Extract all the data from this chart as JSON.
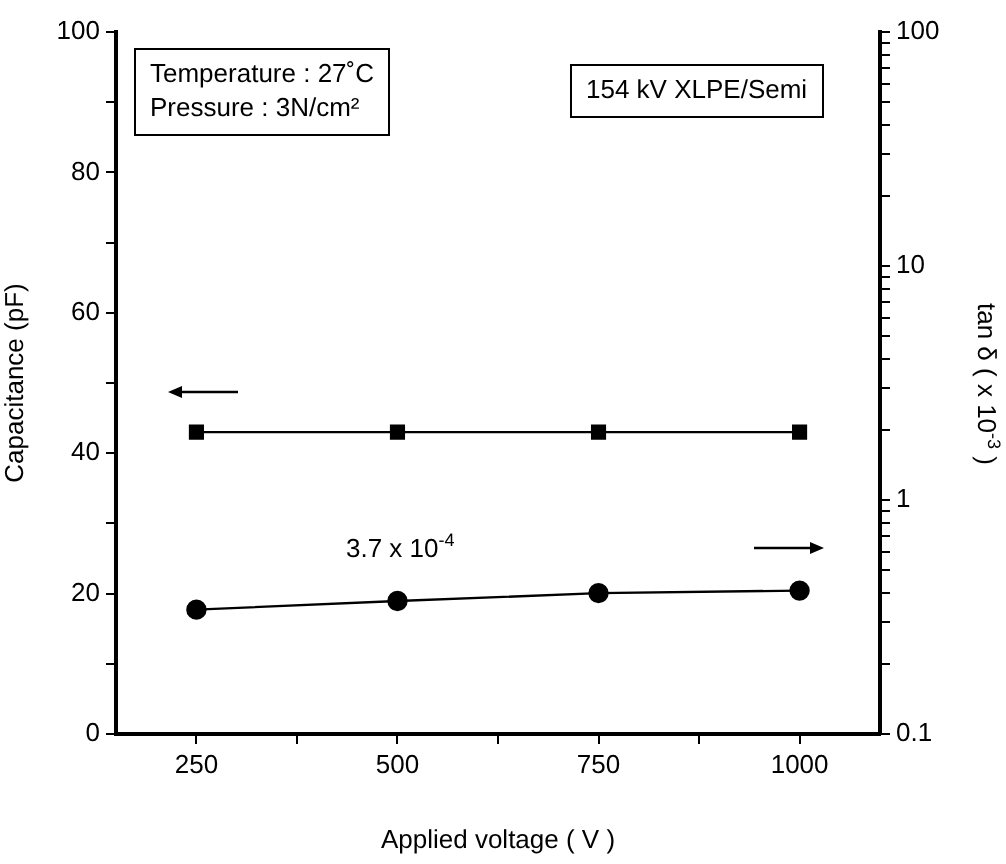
{
  "chart_data": {
    "type": "line",
    "xlabel": "Applied voltage ( V )",
    "ylabel": "Capacitance (pF)",
    "y2label": "tan δ ( x 10$^{-3}$ )",
    "x": [
      250,
      500,
      750,
      1000
    ],
    "series": [
      {
        "color": "#000000",
        "marker": "square",
        "values": [
          43,
          43,
          43,
          43
        ]
      },
      {
        "color": "#000000",
        "marker": "circle",
        "axis": "y2",
        "values": [
          0.34,
          0.37,
          0.4,
          0.41
        ]
      }
    ],
    "xlim": [
      150,
      1100
    ],
    "xticks": [
      250,
      {
        "value": 375,
        "label": null
      },
      500,
      {
        "value": 625,
        "label": null
      },
      750,
      {
        "value": 875,
        "label": null
      },
      1000
    ],
    "ylim": [
      0,
      100
    ],
    "yticks": [
      0,
      {
        "value": 10,
        "label": null
      },
      20,
      {
        "value": 30,
        "label": null
      },
      40,
      {
        "value": 50,
        "label": null
      },
      60,
      {
        "value": 70,
        "label": null
      },
      80,
      {
        "value": 90,
        "label": null
      },
      100
    ],
    "y2lim": [
      0.1,
      100
    ],
    "y2ticks": [
      0.1,
      {
        "value": 0.2,
        "label": null
      },
      {
        "value": 0.3,
        "label": null
      },
      {
        "value": 0.4,
        "label": null
      },
      {
        "value": 0.5,
        "label": null
      },
      {
        "value": 0.6,
        "label": null
      },
      {
        "value": 0.7,
        "label": null
      },
      {
        "value": 0.8,
        "label": null
      },
      {
        "value": 0.9,
        "label": null
      },
      1,
      {
        "value": 2,
        "label": null
      },
      {
        "value": 3,
        "label": null
      },
      {
        "value": 4,
        "label": null
      },
      {
        "value": 5,
        "label": null
      },
      {
        "value": 6,
        "label": null
      },
      {
        "value": 7,
        "label": null
      },
      {
        "value": 8,
        "label": null
      },
      {
        "value": 9,
        "label": null
      },
      10,
      {
        "value": 20,
        "label": null
      },
      {
        "value": 30,
        "label": null
      },
      {
        "value": 40,
        "label": null
      },
      {
        "value": 50,
        "label": null
      },
      {
        "value": 60,
        "label": null
      },
      {
        "value": 70,
        "label": null
      },
      {
        "value": 80,
        "label": null
      },
      {
        "value": 90,
        "label": null
      },
      100
    ],
    "log": "y2",
    "grid": false,
    "legend": false,
    "line_style": "solid",
    "annotations": [
      "Temperature : 27˚C",
      "Pressure : 3N/cm²",
      "154 kV XLPE/Semi",
      "3.7 x 10$^{-4}$"
    ]
  }
}
